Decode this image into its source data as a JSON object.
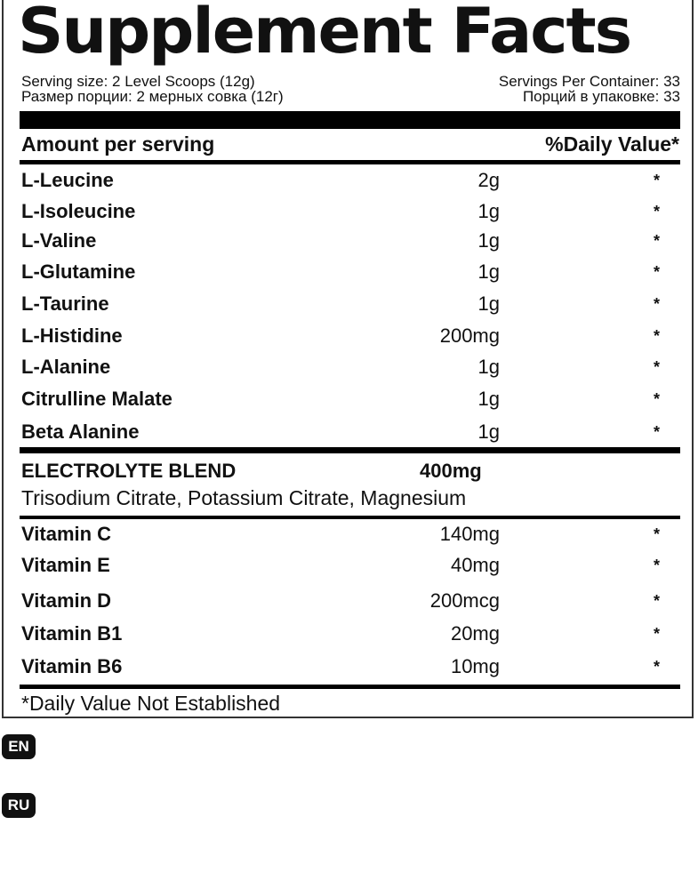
{
  "title": "Supplement Facts",
  "serving": {
    "size_en": "Serving size: 2 Level Scoops (12g)",
    "size_ru": "Размер порции: 2 мерных совка (12г)",
    "per_container_en": "Servings Per Container: 33",
    "per_container_ru": "Порций в упаковке: 33"
  },
  "header": {
    "amount": "Amount per serving",
    "daily": "%Daily Value*"
  },
  "ingredients": [
    {
      "name": "L-Leucine",
      "amount": "2g",
      "dv": "*"
    },
    {
      "name": "L-Isoleucine",
      "amount": "1g",
      "dv": "*"
    },
    {
      "name": "L-Valine",
      "amount": "1g",
      "dv": "*"
    },
    {
      "name": "L-Glutamine",
      "amount": "1g",
      "dv": "*"
    },
    {
      "name": "L-Taurine",
      "amount": "1g",
      "dv": "*"
    },
    {
      "name": "L-Histidine",
      "amount": "200mg",
      "dv": "*"
    },
    {
      "name": "L-Alanine",
      "amount": "1g",
      "dv": "*"
    },
    {
      "name": "Citrulline Malate",
      "amount": "1g",
      "dv": "*"
    },
    {
      "name": "Beta Alanine",
      "amount": "1g",
      "dv": "*"
    }
  ],
  "blend": {
    "name": "ELECTROLYTE BLEND",
    "amount": "400mg",
    "contents": "Trisodium Citrate, Potassium Citrate, Magnesium"
  },
  "vitamins": [
    {
      "name": "Vitamin C",
      "amount": "140mg",
      "dv": "*"
    },
    {
      "name": "Vitamin E",
      "amount": "40mg",
      "dv": "*"
    },
    {
      "name": "Vitamin D",
      "amount": "200mcg",
      "dv": "*"
    },
    {
      "name": "Vitamin B1",
      "amount": "20mg",
      "dv": "*"
    },
    {
      "name": "Vitamin B6",
      "amount": "10mg",
      "dv": "*"
    }
  ],
  "footnote": "*Daily Value Not Established",
  "languages": [
    "EN",
    "RU"
  ]
}
